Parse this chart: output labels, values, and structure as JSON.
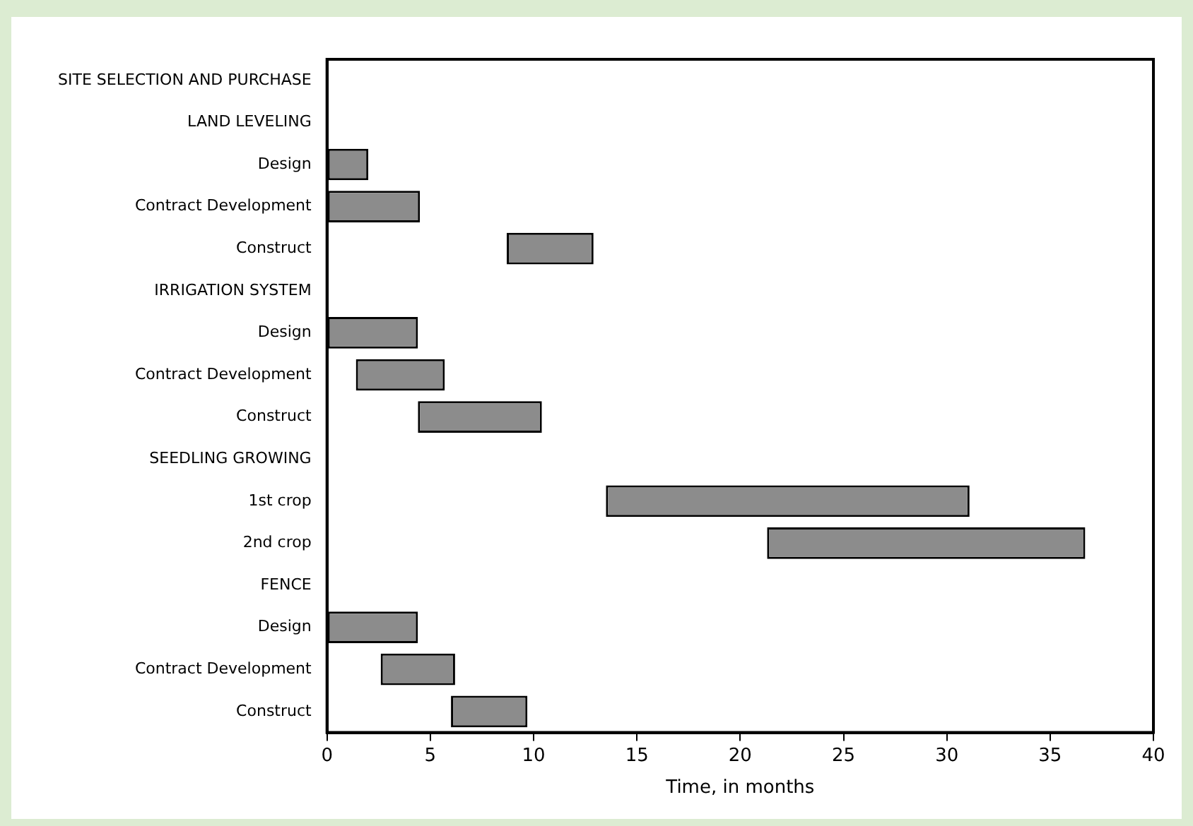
{
  "chart_data": {
    "type": "bar",
    "orientation": "horizontal",
    "xlabel": "Time, in months",
    "categories": [
      "SITE SELECTION AND PURCHASE",
      "LAND LEVELING",
      "Design",
      "Contract Development",
      "Construct",
      "IRRIGATION SYSTEM",
      "Design",
      "Contract Development",
      "Construct",
      "SEEDLING GROWING",
      "1st crop",
      "2nd crop",
      "FENCE",
      "Design",
      "Contract Development",
      "Construct"
    ],
    "base": [
      null,
      null,
      0,
      0,
      8.7,
      null,
      0,
      1.4,
      4.4,
      null,
      13.5,
      21.3,
      null,
      0,
      2.6,
      6.0
    ],
    "values": [
      null,
      null,
      2.0,
      4.5,
      4.2,
      null,
      4.4,
      4.3,
      6.0,
      null,
      17.6,
      15.4,
      null,
      4.4,
      3.6,
      3.7
    ],
    "color": "#8c8c8c",
    "xlim": [
      0,
      40
    ],
    "xticks": [
      0,
      5,
      10,
      15,
      20,
      25,
      30,
      35,
      40
    ],
    "grid": false,
    "legend": false
  }
}
